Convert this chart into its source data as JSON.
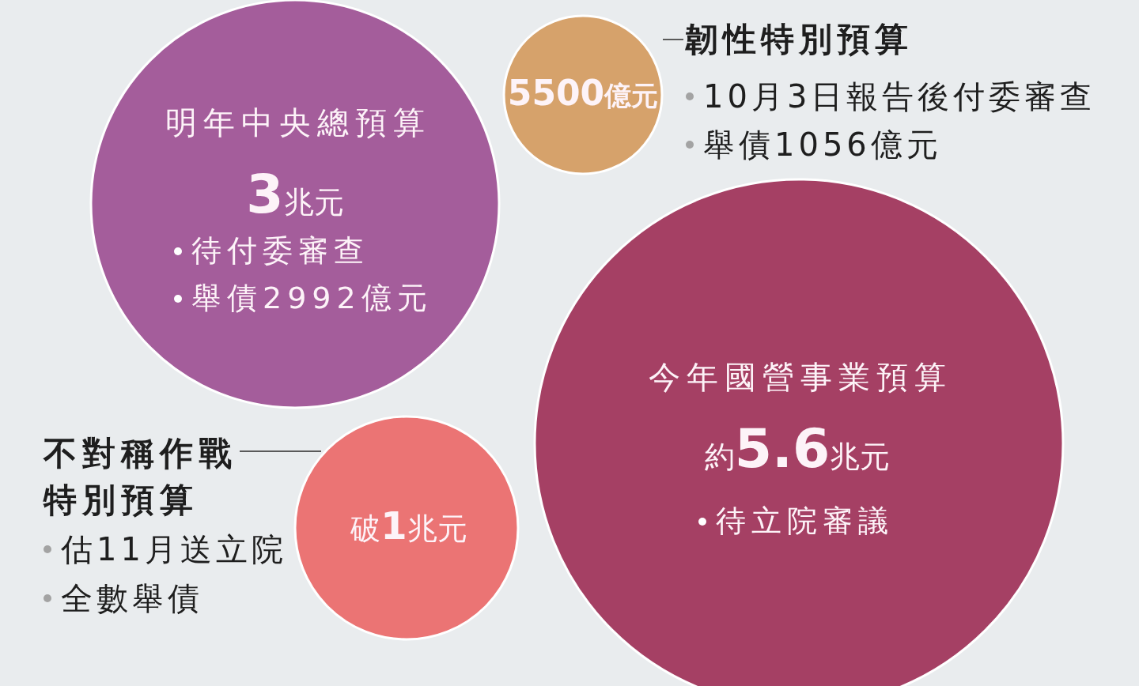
{
  "chart_data": {
    "type": "other",
    "categories": [
      "明年中央總預算",
      "韌性特別預算",
      "今年國營事業預算",
      "不對稱作戰特別預算"
    ],
    "values": [
      3,
      5500,
      5.6,
      1
    ],
    "value_labels": [
      "3兆元",
      "5500億元",
      "約5.6兆元",
      "破1兆元"
    ],
    "colors": [
      "#a45d9b",
      "#d6a26b",
      "#a54064",
      "#eb7474"
    ],
    "annotations": [
      "待付委審查",
      "舉債2992億元",
      "10月3日報告後付委審查",
      "舉債1056億元",
      "待立院審議",
      "估11月送立院",
      "全數舉債"
    ]
  }
}
